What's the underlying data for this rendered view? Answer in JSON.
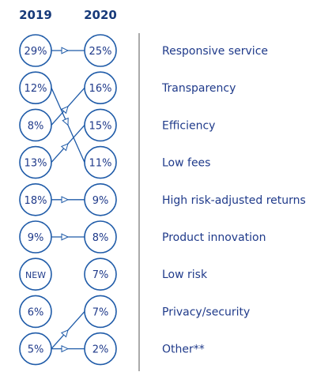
{
  "chart_data": {
    "type": "slope",
    "title": "",
    "xlabel": "",
    "ylabel": "",
    "columns": [
      "2019",
      "2020"
    ],
    "rows": [
      {
        "label": "Responsive service",
        "left": "29%",
        "right": "25%",
        "from_row": 0
      },
      {
        "label": "Transparency",
        "left": "12%",
        "right": "16%",
        "from_row": 2
      },
      {
        "label": "Efficiency",
        "left": "8%",
        "right": "15%",
        "from_row": 3
      },
      {
        "label": "Low fees",
        "left": "13%",
        "right": "11%",
        "from_row": 1
      },
      {
        "label": "High risk-adjusted returns",
        "left": "18%",
        "right": "9%",
        "from_row": 4
      },
      {
        "label": "Product innovation",
        "left": "9%",
        "right": "8%",
        "from_row": 5
      },
      {
        "label": "Low risk",
        "left": "NEW",
        "right": "7%",
        "from_row": null
      },
      {
        "label": "Privacy/security",
        "left": "6%",
        "right": "7%",
        "from_row": 8
      },
      {
        "label": "Other**",
        "left": "5%",
        "right": "2%",
        "from_row": 8
      }
    ],
    "colors": {
      "circle": "#1f5ba8",
      "text": "#1f3a8a",
      "header": "#173a7a",
      "divider": "#555555"
    }
  }
}
